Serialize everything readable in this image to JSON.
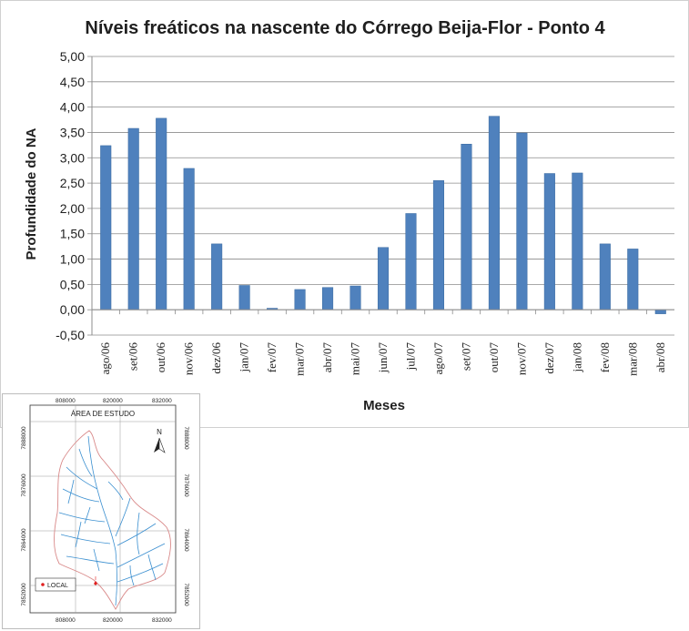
{
  "chart_data": {
    "type": "bar",
    "title": "Níveis freáticos na nascente do Córrego Beija-Flor - Ponto 4",
    "xlabel": "Meses",
    "ylabel": "Profundidade do NA",
    "ylim": [
      -0.5,
      5.0
    ],
    "ytick_step": 0.5,
    "yticks": [
      "-0,50",
      "0,00",
      "0,50",
      "1,00",
      "1,50",
      "2,00",
      "2,50",
      "3,00",
      "3,50",
      "4,00",
      "4,50",
      "5,00"
    ],
    "grid": true,
    "legend": "none",
    "bar_color": "#4F81BD",
    "categories": [
      "ago/06",
      "set/06",
      "out/06",
      "nov/06",
      "dez/06",
      "jan/07",
      "fev/07",
      "mar/07",
      "abr/07",
      "mai/07",
      "jun/07",
      "jul/07",
      "ago/07",
      "set/07",
      "out/07",
      "nov/07",
      "dez/07",
      "jan/08",
      "fev/08",
      "mar/08",
      "abr/08"
    ],
    "values": [
      3.24,
      3.58,
      3.78,
      2.79,
      1.3,
      0.48,
      0.03,
      0.4,
      0.44,
      0.47,
      1.23,
      1.9,
      2.55,
      3.27,
      3.82,
      3.49,
      2.69,
      2.7,
      1.3,
      1.2,
      -0.08
    ]
  },
  "map": {
    "title": "ÁREA DE ESTUDO",
    "north_label": "N",
    "legend_label": "LOCAL",
    "marker_color": "#e02020",
    "top_ticks": [
      "808000",
      "820000",
      "832000"
    ],
    "bottom_ticks": [
      "808000",
      "820000",
      "832000"
    ],
    "left_ticks": [
      "7888000",
      "7876000",
      "7864000",
      "7852000"
    ],
    "right_ticks": [
      "7888000",
      "7876000",
      "7864000",
      "7852000"
    ]
  }
}
